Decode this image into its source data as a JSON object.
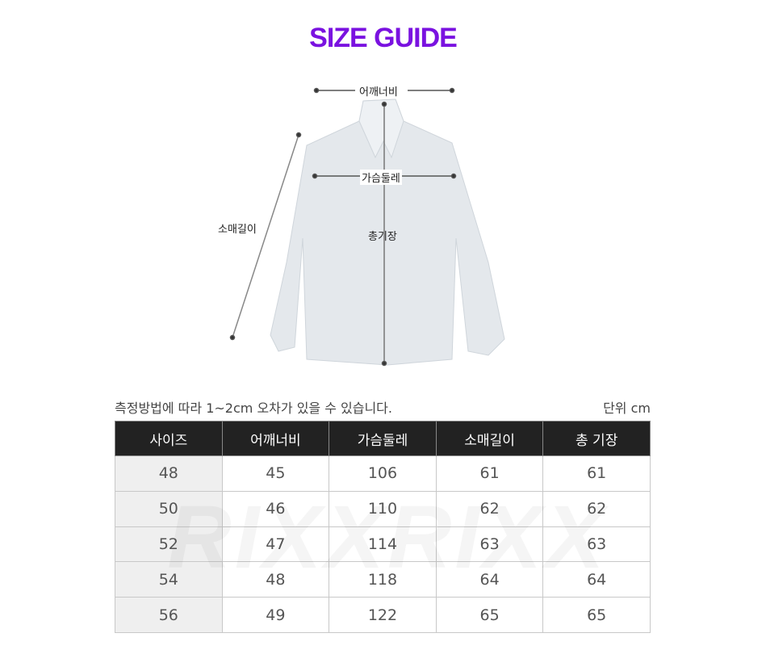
{
  "title": "SIZE GUIDE",
  "diagram": {
    "shoulder_label": "어깨너비",
    "chest_label": "가슴둘레",
    "sleeve_label": "소매길이",
    "length_label": "총기장"
  },
  "note": "측정방법에 따라 1~2cm 오차가 있을 수 있습니다.",
  "unit": "단위 cm",
  "table": {
    "headers": [
      "사이즈",
      "어깨너비",
      "가슴둘레",
      "소매길이",
      "총 기장"
    ],
    "rows": [
      [
        "48",
        "45",
        "106",
        "61",
        "61"
      ],
      [
        "50",
        "46",
        "110",
        "62",
        "62"
      ],
      [
        "52",
        "47",
        "114",
        "63",
        "63"
      ],
      [
        "54",
        "48",
        "118",
        "64",
        "64"
      ],
      [
        "56",
        "49",
        "122",
        "65",
        "65"
      ]
    ]
  },
  "watermark": "RIXXRIXX",
  "colors": {
    "title": "#7a12e0",
    "header_bg": "#222222",
    "size_col_bg": "#efefef"
  }
}
